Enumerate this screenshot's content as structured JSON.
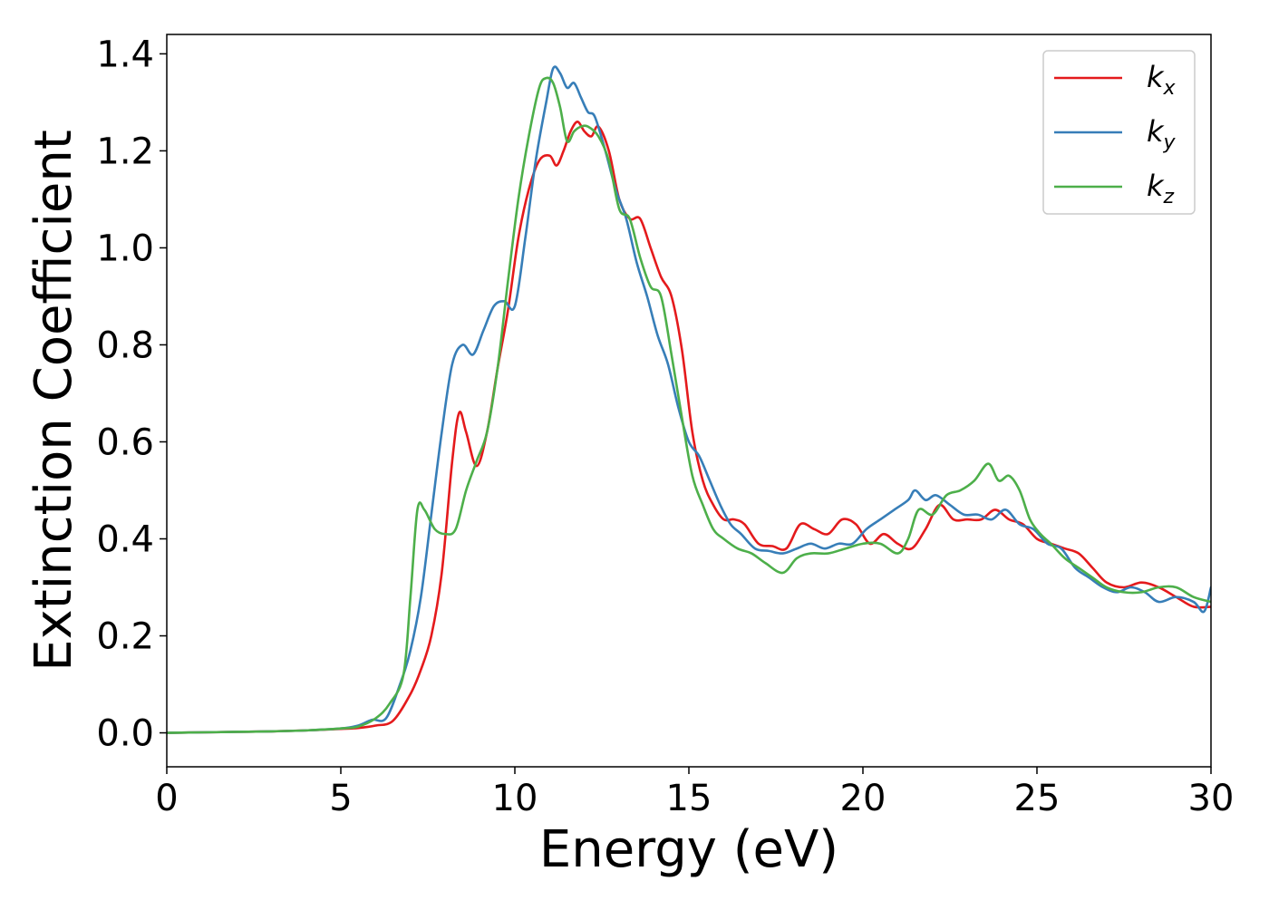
{
  "chart_data": {
    "type": "line",
    "title": "",
    "xlabel": "Energy (eV)",
    "ylabel": "Extinction Coefficient",
    "xlim": [
      0,
      30
    ],
    "ylim": [
      -0.07,
      1.44
    ],
    "xticks": [
      0,
      5,
      10,
      15,
      20,
      25,
      30
    ],
    "yticks": [
      0.0,
      0.2,
      0.4,
      0.6,
      0.8,
      1.0,
      1.2,
      1.4
    ],
    "xtick_labels": [
      "0",
      "5",
      "10",
      "15",
      "20",
      "25",
      "30"
    ],
    "ytick_labels": [
      "0.0",
      "0.2",
      "0.4",
      "0.6",
      "0.8",
      "1.0",
      "1.2",
      "1.4"
    ],
    "grid": false,
    "legend_position": "top-right",
    "series": [
      {
        "name": "k_x",
        "label_base": "k",
        "label_sub": "x",
        "color": "#e41a1c",
        "x": [
          0,
          1,
          2,
          3,
          4,
          5,
          5.5,
          6,
          6.5,
          7,
          7.3,
          7.6,
          7.9,
          8.2,
          8.4,
          8.6,
          8.9,
          9.2,
          9.5,
          9.8,
          10.1,
          10.4,
          10.7,
          11.0,
          11.2,
          11.4,
          11.6,
          11.8,
          12.0,
          12.2,
          12.4,
          12.7,
          13.0,
          13.3,
          13.6,
          13.9,
          14.2,
          14.5,
          14.8,
          15.1,
          15.4,
          15.7,
          16.0,
          16.3,
          16.6,
          17.0,
          17.4,
          17.8,
          18.2,
          18.6,
          19.0,
          19.4,
          19.8,
          20.2,
          20.6,
          21.0,
          21.4,
          21.8,
          22.2,
          22.6,
          23.0,
          23.4,
          23.8,
          24.2,
          24.6,
          25.0,
          25.4,
          25.8,
          26.2,
          26.6,
          27.0,
          27.5,
          28.0,
          28.5,
          29.0,
          29.5,
          30.0
        ],
        "y": [
          0,
          0.001,
          0.002,
          0.003,
          0.005,
          0.008,
          0.01,
          0.015,
          0.025,
          0.08,
          0.13,
          0.2,
          0.33,
          0.56,
          0.66,
          0.62,
          0.55,
          0.62,
          0.75,
          0.87,
          1.02,
          1.12,
          1.18,
          1.19,
          1.17,
          1.2,
          1.24,
          1.26,
          1.24,
          1.23,
          1.25,
          1.2,
          1.1,
          1.06,
          1.06,
          1.0,
          0.94,
          0.9,
          0.79,
          0.62,
          0.52,
          0.47,
          0.44,
          0.44,
          0.43,
          0.39,
          0.385,
          0.38,
          0.43,
          0.42,
          0.41,
          0.44,
          0.43,
          0.39,
          0.41,
          0.39,
          0.38,
          0.42,
          0.47,
          0.44,
          0.44,
          0.44,
          0.46,
          0.44,
          0.43,
          0.4,
          0.39,
          0.38,
          0.37,
          0.34,
          0.31,
          0.3,
          0.31,
          0.3,
          0.28,
          0.26,
          0.26
        ]
      },
      {
        "name": "k_y",
        "label_base": "k",
        "label_sub": "y",
        "color": "#377eb8",
        "x": [
          0,
          1,
          2,
          3,
          4,
          5,
          5.5,
          5.9,
          6.3,
          6.7,
          7.0,
          7.3,
          7.6,
          7.9,
          8.2,
          8.5,
          8.8,
          9.1,
          9.4,
          9.7,
          10.0,
          10.3,
          10.6,
          10.9,
          11.1,
          11.3,
          11.5,
          11.7,
          11.9,
          12.1,
          12.3,
          12.6,
          12.9,
          13.2,
          13.5,
          13.8,
          14.1,
          14.4,
          14.7,
          15.0,
          15.3,
          15.6,
          15.9,
          16.2,
          16.5,
          16.9,
          17.3,
          17.7,
          18.1,
          18.5,
          18.9,
          19.3,
          19.7,
          20.1,
          20.5,
          20.9,
          21.3,
          21.5,
          21.8,
          22.1,
          22.5,
          22.9,
          23.3,
          23.7,
          24.1,
          24.5,
          24.9,
          25.3,
          25.7,
          26.1,
          26.5,
          26.9,
          27.3,
          27.7,
          28.1,
          28.5,
          29.0,
          29.5,
          29.8,
          30.0
        ],
        "y": [
          0,
          0.001,
          0.002,
          0.003,
          0.005,
          0.009,
          0.015,
          0.027,
          0.03,
          0.1,
          0.17,
          0.28,
          0.45,
          0.62,
          0.76,
          0.8,
          0.78,
          0.83,
          0.88,
          0.89,
          0.88,
          1.02,
          1.18,
          1.3,
          1.37,
          1.36,
          1.33,
          1.34,
          1.31,
          1.28,
          1.27,
          1.2,
          1.12,
          1.06,
          0.97,
          0.9,
          0.82,
          0.76,
          0.67,
          0.6,
          0.57,
          0.52,
          0.47,
          0.43,
          0.41,
          0.38,
          0.375,
          0.37,
          0.38,
          0.39,
          0.38,
          0.39,
          0.39,
          0.42,
          0.44,
          0.46,
          0.48,
          0.5,
          0.48,
          0.49,
          0.47,
          0.45,
          0.45,
          0.44,
          0.46,
          0.43,
          0.42,
          0.39,
          0.38,
          0.34,
          0.32,
          0.3,
          0.29,
          0.3,
          0.29,
          0.27,
          0.28,
          0.27,
          0.25,
          0.3
        ]
      },
      {
        "name": "k_z",
        "label_base": "k",
        "label_sub": "z",
        "color": "#4daf4a",
        "x": [
          0,
          1,
          2,
          3,
          4,
          5,
          5.5,
          6.0,
          6.4,
          6.8,
          7.0,
          7.2,
          7.4,
          7.7,
          8.0,
          8.3,
          8.6,
          8.9,
          9.2,
          9.5,
          9.8,
          10.1,
          10.4,
          10.7,
          10.9,
          11.1,
          11.3,
          11.5,
          11.7,
          11.9,
          12.1,
          12.4,
          12.7,
          13.0,
          13.3,
          13.6,
          13.9,
          14.2,
          14.5,
          14.8,
          15.1,
          15.4,
          15.7,
          16.0,
          16.4,
          16.8,
          17.2,
          17.7,
          18.1,
          18.5,
          19.0,
          19.5,
          20.0,
          20.5,
          21.0,
          21.3,
          21.6,
          22.0,
          22.4,
          22.8,
          23.2,
          23.6,
          23.9,
          24.2,
          24.5,
          24.8,
          25.1,
          25.4,
          25.8,
          26.2,
          26.6,
          27.0,
          27.5,
          28.0,
          28.5,
          29.0,
          29.5,
          30.0
        ],
        "y": [
          0,
          0.001,
          0.002,
          0.003,
          0.005,
          0.009,
          0.013,
          0.03,
          0.06,
          0.12,
          0.28,
          0.46,
          0.46,
          0.42,
          0.41,
          0.42,
          0.5,
          0.56,
          0.62,
          0.75,
          0.93,
          1.1,
          1.23,
          1.33,
          1.35,
          1.34,
          1.29,
          1.22,
          1.24,
          1.25,
          1.25,
          1.23,
          1.18,
          1.08,
          1.06,
          0.98,
          0.92,
          0.9,
          0.78,
          0.65,
          0.53,
          0.47,
          0.42,
          0.4,
          0.38,
          0.37,
          0.35,
          0.33,
          0.36,
          0.37,
          0.37,
          0.38,
          0.39,
          0.39,
          0.37,
          0.4,
          0.46,
          0.45,
          0.49,
          0.5,
          0.52,
          0.555,
          0.52,
          0.53,
          0.5,
          0.44,
          0.41,
          0.39,
          0.36,
          0.34,
          0.32,
          0.3,
          0.29,
          0.29,
          0.3,
          0.3,
          0.28,
          0.27
        ]
      }
    ]
  }
}
